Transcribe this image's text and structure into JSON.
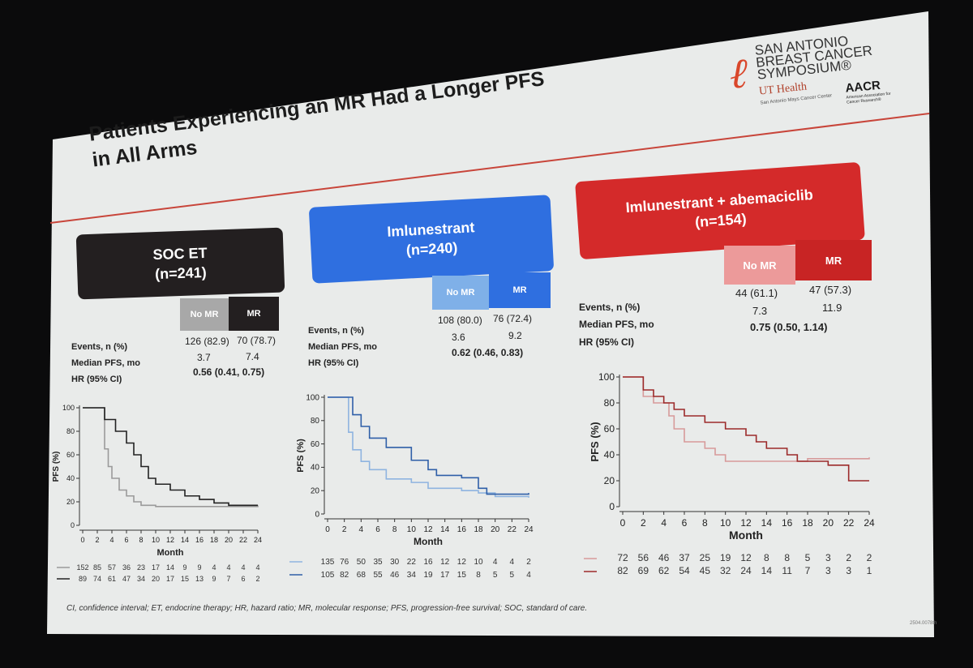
{
  "slide": {
    "title_line1": "Patients Experiencing an MR Had a Longer PFS",
    "title_line2": "in All Arms",
    "logo": {
      "line1": "SAN ANTONIO",
      "line2": "BREAST CANCER",
      "line3": "SYMPOSIUM®",
      "ut": "UT Health",
      "ut_sub": "San Antonio Mays Cancer Center",
      "aacr": "AACR",
      "aacr_sub": "American Association for Cancer Research®"
    },
    "footnote": "CI, confidence interval; ET, endocrine therapy; HR, hazard ratio; MR, molecular response; PFS, progression-free survival; SOC, standard of care.",
    "slide_code": "2504.0078th",
    "row_labels": {
      "events": "Events, n (%)",
      "median": "Median PFS, mo",
      "hr": "HR (95% CI)"
    },
    "col_no_mr": "No MR",
    "col_mr": "MR",
    "x_label": "Month",
    "y_label": "PFS (%)"
  },
  "arms": [
    {
      "name": "SOC ET",
      "n": "(n=241)",
      "color": "#231f20",
      "events": [
        "126 (82.9)",
        "70 (78.7)"
      ],
      "median": [
        "3.7",
        "7.4"
      ],
      "hr": "0.56 (0.41, 0.75)"
    },
    {
      "name": "Imlunestrant",
      "n": "(n=240)",
      "color": "#2f6fe0",
      "events": [
        "108 (80.0)",
        "76 (72.4)"
      ],
      "median": [
        "3.6",
        "9.2"
      ],
      "hr": "0.62 (0.46, 0.83)"
    },
    {
      "name": "Imlunestrant + abemaciclib",
      "n": "(n=154)",
      "color": "#d42a2a",
      "events": [
        "44 (61.1)",
        "47 (57.3)"
      ],
      "median": [
        "7.3",
        "11.9"
      ],
      "hr": "0.75 (0.50, 1.14)"
    }
  ],
  "chart_data": [
    {
      "type": "line",
      "title": "SOC ET",
      "xlabel": "Month",
      "ylabel": "PFS (%)",
      "xlim": [
        0,
        24
      ],
      "ylim": [
        0,
        100
      ],
      "x_ticks": [
        "0",
        "2",
        "4",
        "6",
        "8",
        "10",
        "12",
        "14",
        "16",
        "18",
        "20",
        "22",
        "24"
      ],
      "y_ticks": [
        "0",
        "20",
        "40",
        "60",
        "80",
        "100"
      ],
      "series": [
        {
          "name": "No MR",
          "color": "#9a9a9a",
          "points": [
            [
              0,
              100
            ],
            [
              3,
              100
            ],
            [
              3,
              65
            ],
            [
              3.5,
              50
            ],
            [
              4,
              40
            ],
            [
              5,
              30
            ],
            [
              6,
              25
            ],
            [
              7,
              20
            ],
            [
              8,
              17
            ],
            [
              10,
              16
            ],
            [
              24,
              17
            ]
          ],
          "at_risk": [
            "152",
            "85",
            "57",
            "36",
            "23",
            "17",
            "14",
            "9",
            "9",
            "4",
            "4",
            "4",
            "4"
          ]
        },
        {
          "name": "MR",
          "color": "#222222",
          "points": [
            [
              0,
              100
            ],
            [
              3,
              100
            ],
            [
              3,
              90
            ],
            [
              4.5,
              80
            ],
            [
              6,
              70
            ],
            [
              7,
              60
            ],
            [
              8,
              50
            ],
            [
              9,
              40
            ],
            [
              10,
              35
            ],
            [
              12,
              30
            ],
            [
              14,
              25
            ],
            [
              16,
              22
            ],
            [
              18,
              19
            ],
            [
              20,
              17
            ],
            [
              24,
              17
            ]
          ],
          "at_risk": [
            "89",
            "74",
            "61",
            "47",
            "34",
            "20",
            "17",
            "15",
            "13",
            "9",
            "7",
            "6",
            "2"
          ]
        }
      ]
    },
    {
      "type": "line",
      "title": "Imlunestrant",
      "xlabel": "Month",
      "ylabel": "PFS (%)",
      "xlim": [
        0,
        24
      ],
      "ylim": [
        0,
        100
      ],
      "x_ticks": [
        "0",
        "2",
        "4",
        "6",
        "8",
        "10",
        "12",
        "14",
        "16",
        "18",
        "20",
        "22",
        "24"
      ],
      "y_ticks": [
        "0",
        "20",
        "40",
        "60",
        "80",
        "100"
      ],
      "series": [
        {
          "name": "No MR",
          "color": "#8fb4e0",
          "points": [
            [
              0,
              100
            ],
            [
              2,
              100
            ],
            [
              2.5,
              70
            ],
            [
              3,
              55
            ],
            [
              4,
              45
            ],
            [
              5,
              38
            ],
            [
              7,
              30
            ],
            [
              10,
              27
            ],
            [
              12,
              22
            ],
            [
              16,
              20
            ],
            [
              18,
              18
            ],
            [
              20,
              15
            ],
            [
              24,
              14
            ]
          ],
          "at_risk": [
            "135",
            "76",
            "50",
            "35",
            "30",
            "22",
            "16",
            "12",
            "12",
            "10",
            "4",
            "4",
            "2"
          ]
        },
        {
          "name": "MR",
          "color": "#2f5fa8",
          "points": [
            [
              0,
              100
            ],
            [
              2.5,
              100
            ],
            [
              3,
              85
            ],
            [
              4,
              75
            ],
            [
              5,
              65
            ],
            [
              7,
              57
            ],
            [
              9,
              57
            ],
            [
              10,
              46
            ],
            [
              12,
              38
            ],
            [
              13,
              33
            ],
            [
              16,
              31
            ],
            [
              18,
              22
            ],
            [
              19,
              17
            ],
            [
              22,
              17
            ],
            [
              24,
              18
            ]
          ],
          "at_risk": [
            "105",
            "82",
            "68",
            "55",
            "46",
            "34",
            "19",
            "17",
            "15",
            "8",
            "5",
            "5",
            "4"
          ]
        }
      ]
    },
    {
      "type": "line",
      "title": "Imlunestrant + abemaciclib",
      "xlabel": "Month",
      "ylabel": "PFS (%)",
      "xlim": [
        0,
        24
      ],
      "ylim": [
        0,
        100
      ],
      "x_ticks": [
        "0",
        "2",
        "4",
        "6",
        "8",
        "10",
        "12",
        "14",
        "16",
        "18",
        "20",
        "22",
        "24"
      ],
      "y_ticks": [
        "0",
        "20",
        "40",
        "60",
        "80",
        "100"
      ],
      "series": [
        {
          "name": "No MR",
          "color": "#d79a9a",
          "points": [
            [
              0,
              100
            ],
            [
              1,
              100
            ],
            [
              2,
              85
            ],
            [
              3,
              80
            ],
            [
              4.5,
              70
            ],
            [
              5,
              60
            ],
            [
              6,
              50
            ],
            [
              8,
              45
            ],
            [
              9,
              40
            ],
            [
              10,
              35
            ],
            [
              16,
              35
            ],
            [
              18,
              37
            ],
            [
              24,
              38
            ]
          ],
          "at_risk": [
            "72",
            "56",
            "46",
            "37",
            "25",
            "19",
            "12",
            "8",
            "8",
            "5",
            "3",
            "2",
            "2"
          ]
        },
        {
          "name": "MR",
          "color": "#9c2a2a",
          "points": [
            [
              0,
              100
            ],
            [
              1,
              100
            ],
            [
              2,
              90
            ],
            [
              3,
              85
            ],
            [
              4,
              80
            ],
            [
              5,
              75
            ],
            [
              6,
              70
            ],
            [
              8,
              65
            ],
            [
              10,
              60
            ],
            [
              12,
              55
            ],
            [
              13,
              50
            ],
            [
              14,
              45
            ],
            [
              16,
              40
            ],
            [
              17,
              35
            ],
            [
              20,
              32
            ],
            [
              22,
              32
            ],
            [
              22,
              20
            ],
            [
              24,
              20
            ]
          ],
          "at_risk": [
            "82",
            "69",
            "62",
            "54",
            "45",
            "32",
            "24",
            "14",
            "11",
            "7",
            "3",
            "3",
            "1"
          ]
        }
      ]
    }
  ]
}
